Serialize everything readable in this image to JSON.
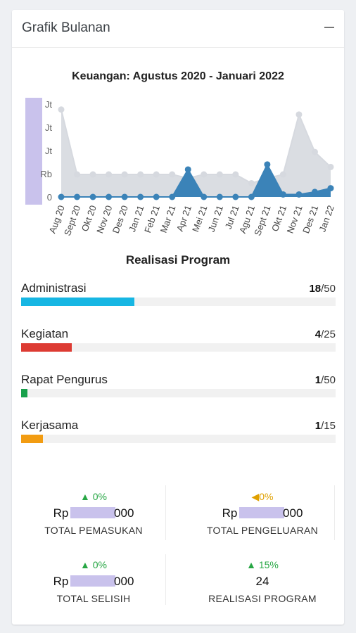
{
  "header": {
    "title": "Grafik Bulanan",
    "collapse_label": "−"
  },
  "chart_data": {
    "type": "area",
    "title": "Keuangan: Agustus 2020 - Januari 2022",
    "categories": [
      "Aug 20",
      "Sept 20",
      "Okt 20",
      "Nov 20",
      "Des 20",
      "Jan 21",
      "Feb 21",
      "Mar 21",
      "Apr 21",
      "Mei 21",
      "Jun 21",
      "Jul 21",
      "Agu 21",
      "Sept 21",
      "Okt 21",
      "Nov 21",
      "Des 21",
      "Jan 22"
    ],
    "y_tick_labels": [
      "0",
      "Rb",
      "Jt",
      "Jt",
      "Jt"
    ],
    "series": [
      {
        "values": [
          3.5,
          0.9,
          0.9,
          0.9,
          0.9,
          0.9,
          0.9,
          0.9,
          0.75,
          0.9,
          0.9,
          0.9,
          0.55,
          0.75,
          0.9,
          3.3,
          1.8,
          1.2
        ],
        "color": "#d6d9df"
      },
      {
        "values": [
          0,
          0,
          0,
          0,
          0,
          0,
          0,
          0,
          1.1,
          0,
          0,
          0,
          0,
          1.3,
          0.1,
          0.1,
          0.2,
          0.35
        ],
        "color": "#3b83b8"
      }
    ],
    "grid": false
  },
  "realisasi": {
    "title": "Realisasi Program",
    "items": [
      {
        "label": "Administrasi",
        "done": "18",
        "total": "/50",
        "ratio": 0.36,
        "color": "#17b6e3"
      },
      {
        "label": "Kegiatan",
        "done": "4",
        "total": "/25",
        "ratio": 0.16,
        "color": "#dd3b33"
      },
      {
        "label": "Rapat Pengurus",
        "done": "1",
        "total": "/50",
        "ratio": 0.02,
        "color": "#17a04a"
      },
      {
        "label": "Kerjasama",
        "done": "1",
        "total": "/15",
        "ratio": 0.07,
        "color": "#f29c12"
      }
    ]
  },
  "stats": {
    "pemasukan": {
      "change": "0%",
      "prefix": "Rp",
      "suffix": "000",
      "label": "TOTAL PEMASUKAN"
    },
    "pengeluaran": {
      "change": "0%",
      "prefix": "Rp",
      "suffix": "000",
      "label": "TOTAL PENGELUARAN"
    },
    "selisih": {
      "change": "0%",
      "prefix": "Rp",
      "suffix": "000",
      "label": "TOTAL SELISIH"
    },
    "realisasi": {
      "change": "15%",
      "value": "24",
      "label": "REALISASI PROGRAM"
    }
  },
  "icons": {
    "up": "caret-up-icon",
    "left": "caret-left-icon"
  }
}
